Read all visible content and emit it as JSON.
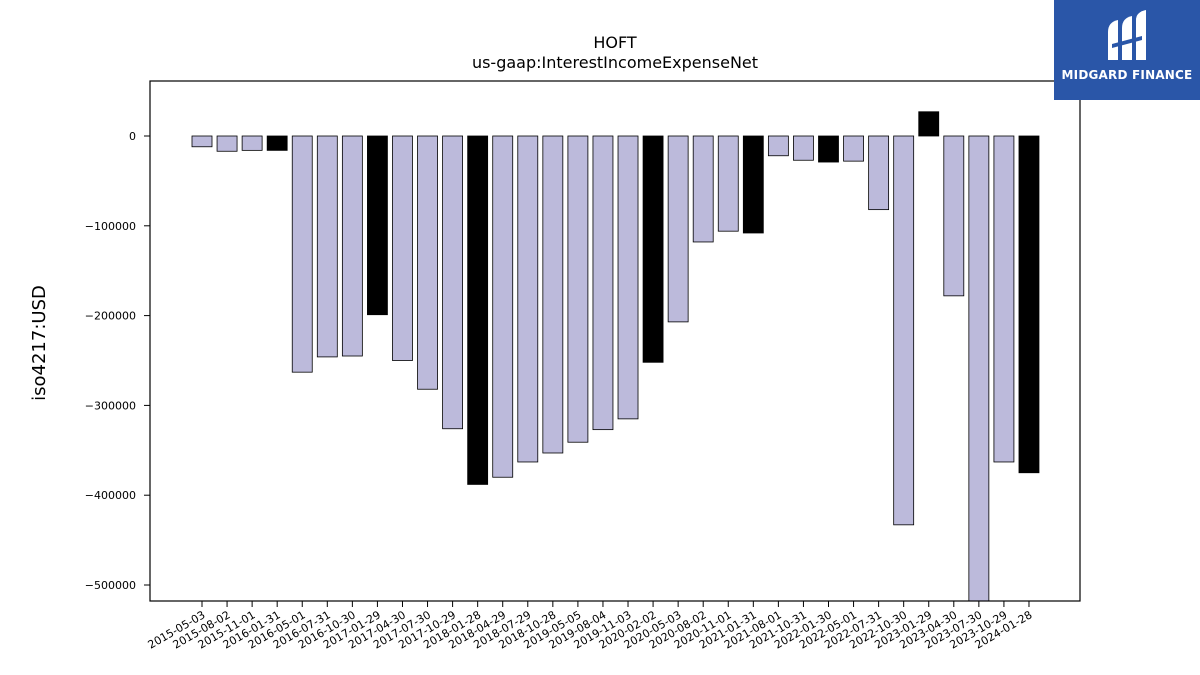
{
  "logo": {
    "text": "MIDGARD FINANCE",
    "bg_color": "#2a56a8",
    "icon": "midgard-logo-icon"
  },
  "chart_data": {
    "type": "bar",
    "title": "HOFT",
    "subtitle": "us-gaap:InterestIncomeExpenseNet",
    "ylabel": "iso4217:USD",
    "xlabel": "",
    "ylim": [
      -518000,
      61000
    ],
    "yticks": [
      0,
      -100000,
      -200000,
      -300000,
      -400000,
      -500000
    ],
    "ytick_labels": [
      "0",
      "−100000",
      "−200000",
      "−300000",
      "−400000",
      "−500000"
    ],
    "grid": false,
    "colors": {
      "default": "#bcbadb",
      "highlight": "#000000"
    },
    "categories": [
      "2015-05-03",
      "2015-08-02",
      "2015-11-01",
      "2016-01-31",
      "2016-05-01",
      "2016-07-31",
      "2016-10-30",
      "2017-01-29",
      "2017-04-30",
      "2017-07-30",
      "2017-10-29",
      "2018-01-28",
      "2018-04-29",
      "2018-07-29",
      "2018-10-28",
      "2019-05-05",
      "2019-08-04",
      "2019-11-03",
      "2020-02-02",
      "2020-05-03",
      "2020-08-02",
      "2020-11-01",
      "2021-01-31",
      "2021-08-01",
      "2021-10-31",
      "2022-01-30",
      "2022-05-01",
      "2022-07-31",
      "2022-10-30",
      "2023-01-29",
      "2023-04-30",
      "2023-07-30",
      "2023-10-29",
      "2024-01-28"
    ],
    "values": [
      -12000,
      -17000,
      -16000,
      -16000,
      -263000,
      -246000,
      -245000,
      -199000,
      -250000,
      -282000,
      -326000,
      -388000,
      -380000,
      -363000,
      -353000,
      -341000,
      -327000,
      -315000,
      -252000,
      -207000,
      -118000,
      -106000,
      -108000,
      -22000,
      -27000,
      -29000,
      -28000,
      -82000,
      -433000,
      27000,
      -178000,
      -518000,
      -363000,
      -375000
    ],
    "highlight": [
      false,
      false,
      false,
      true,
      false,
      false,
      false,
      true,
      false,
      false,
      false,
      true,
      false,
      false,
      false,
      false,
      false,
      false,
      true,
      false,
      false,
      false,
      true,
      false,
      false,
      true,
      false,
      false,
      false,
      true,
      false,
      false,
      false,
      true
    ]
  }
}
